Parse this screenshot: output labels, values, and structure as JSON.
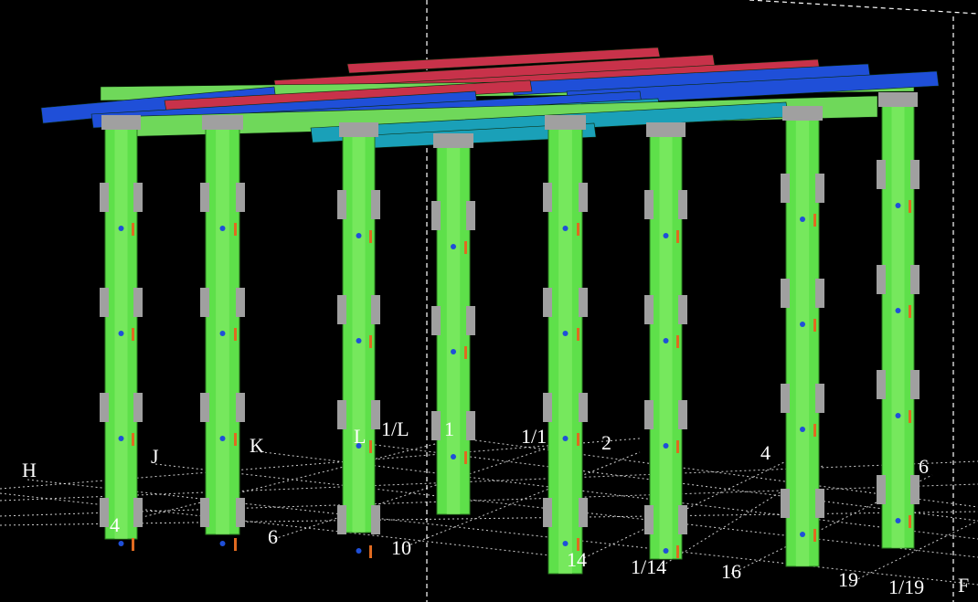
{
  "viewport": {
    "background": "#000000",
    "colors": {
      "column": "#5ee04a",
      "beam_blue": "#1f4fd8",
      "beam_cyan": "#1aa0b8",
      "beam_red": "#c8324a",
      "beam_green": "#6fd85a",
      "plate": "#a0a0a0",
      "grid": "#ffffff"
    },
    "grid_labels_row": [
      "H",
      "J",
      "K",
      "L",
      "1/L",
      "1",
      "1/1",
      "2",
      "4",
      "6"
    ],
    "grid_labels_front": [
      "4",
      "6",
      "10",
      "14",
      "1/14",
      "16",
      "19",
      "1/19",
      "F"
    ]
  }
}
